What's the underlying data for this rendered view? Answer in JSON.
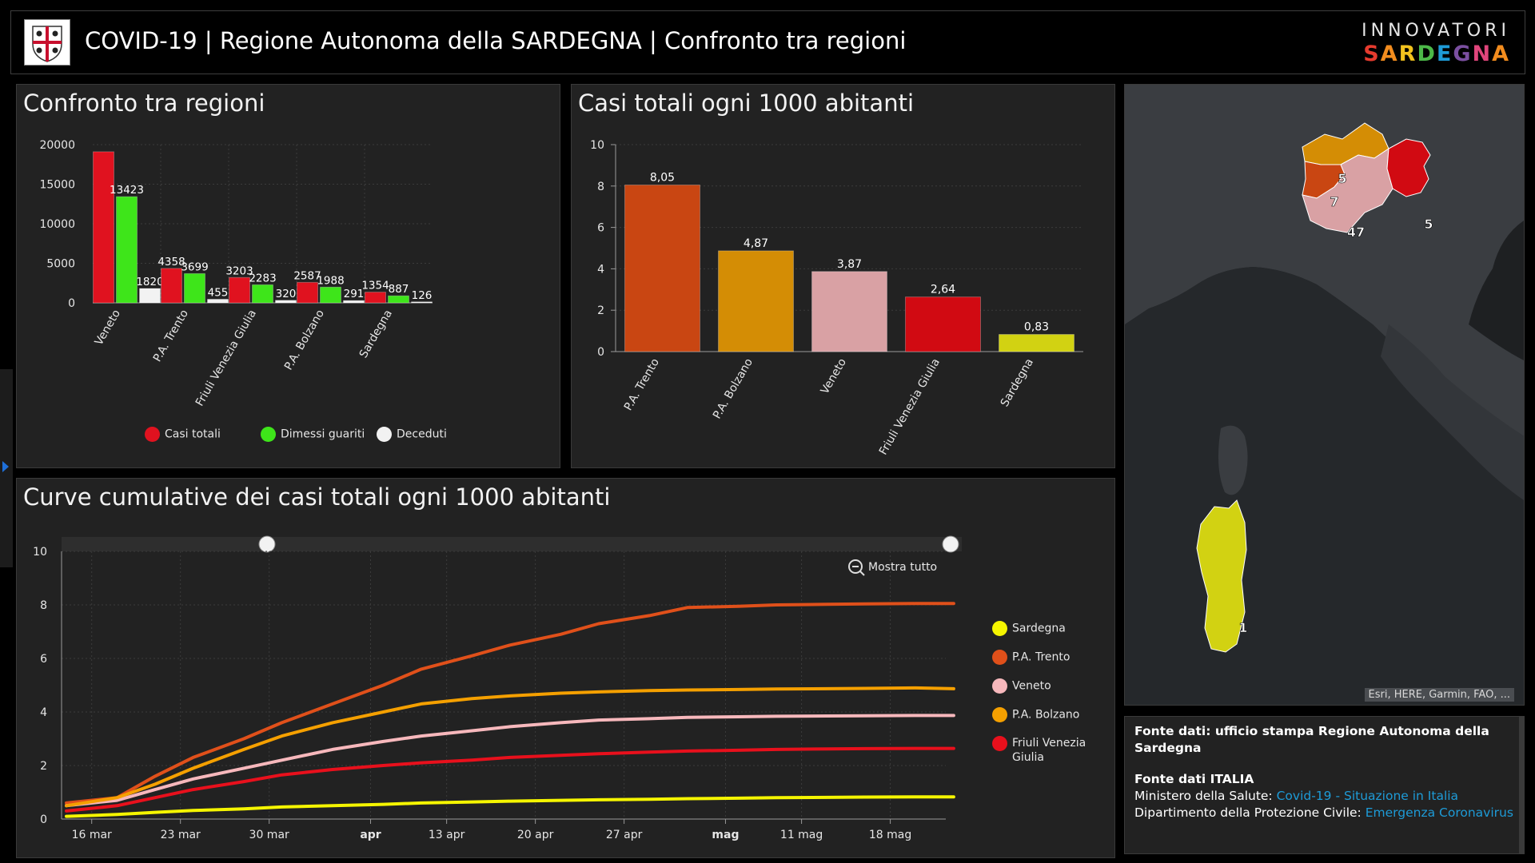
{
  "header": {
    "title": "COVID-19 | Regione Autonoma della SARDEGNA | Confronto tra regioni",
    "brand_top": "INNOVATORI",
    "brand_bottom_letters": [
      "S",
      "A",
      "R",
      "D",
      "E",
      "G",
      "N",
      "A"
    ],
    "brand_colors": [
      "#e63b2e",
      "#f28c1e",
      "#f2c21e",
      "#4cb848",
      "#1e9bd7",
      "#7b4fa0",
      "#e0457b",
      "#f28c1e"
    ]
  },
  "panel1": {
    "title": "Confronto tra regioni",
    "legend": [
      {
        "label": "Casi totali",
        "color": "#e0121f"
      },
      {
        "label": "Dimessi guariti",
        "color": "#3ee51a"
      },
      {
        "label": "Deceduti",
        "color": "#f2f2f2"
      }
    ]
  },
  "panel2": {
    "title": "Casi totali ogni 1000 abitanti"
  },
  "panel3": {
    "title": "Curve cumulative dei casi totali ogni 1000 abitanti",
    "zoom_label": "Mostra tutto",
    "legend": [
      {
        "label": "Sardegna",
        "color": "#f5f500"
      },
      {
        "label": "P.A. Trento",
        "color": "#e0501a"
      },
      {
        "label": "Veneto",
        "color": "#f7b8bc"
      },
      {
        "label": "P.A. Bolzano",
        "color": "#f5a000"
      },
      {
        "label": "Friuli Venezia Giulia",
        "color": "#e8101c"
      }
    ]
  },
  "map": {
    "attribution": "Esri, HERE, Garmin, FAO, ...",
    "labels": [
      "5",
      "7",
      "47",
      "5",
      "1"
    ]
  },
  "info": {
    "line1_bold": "Fonte dati: ufficio stampa Regione Autonoma della Sardegna",
    "line2_bold": "Fonte dati ITALIA",
    "line3_prefix": "Ministero della Salute: ",
    "line3_link": "Covid-19 - Situazione in Italia",
    "line4_prefix": "Dipartimento della Protezione Civile: ",
    "line4_link": "Emergenza Coronavirus"
  },
  "chart_data": [
    {
      "type": "bar",
      "categories": [
        "Veneto",
        "P.A. Trento",
        "Friuli Venezia Giulia",
        "P.A. Bolzano",
        "Sardegna"
      ],
      "series": [
        {
          "name": "Casi totali",
          "values": [
            19100,
            4358,
            3203,
            2587,
            1354
          ]
        },
        {
          "name": "Dimessi guariti",
          "values": [
            13423,
            3699,
            2283,
            1988,
            887
          ]
        },
        {
          "name": "Deceduti",
          "values": [
            1820,
            455,
            320,
            291,
            126
          ]
        }
      ],
      "data_labels": [
        [
          "",
          "4358",
          "3203",
          "2587",
          "1354"
        ],
        [
          "13423",
          "3699",
          "2283",
          "1988",
          "887"
        ],
        [
          "1820",
          "455",
          "320",
          "291",
          "126"
        ]
      ],
      "y_ticks": [
        "0",
        "5000",
        "10000",
        "15000",
        "20000"
      ],
      "ylim": [
        0,
        20000
      ],
      "grid": true,
      "legend_position": "bottom"
    },
    {
      "type": "bar",
      "categories": [
        "P.A. Trento",
        "P.A. Bolzano",
        "Veneto",
        "Friuli Venezia Giulia",
        "Sardegna"
      ],
      "values": [
        8.05,
        4.87,
        3.87,
        2.64,
        0.83
      ],
      "value_labels": [
        "8,05",
        "4,87",
        "3,87",
        "2,64",
        "0,83"
      ],
      "colors": [
        "#c94612",
        "#d48d05",
        "#d9a1a4",
        "#d10a12",
        "#d2d212"
      ],
      "y_ticks": [
        "0",
        "2",
        "4",
        "6",
        "8",
        "10"
      ],
      "ylim": [
        0,
        10
      ],
      "grid": true
    },
    {
      "type": "line",
      "x_ticks": [
        "16 mar",
        "23 mar",
        "30 mar",
        "apr",
        "13 apr",
        "20 apr",
        "27 apr",
        "mag",
        "11 mag",
        "18 mag"
      ],
      "x_ticks_bold": [
        "apr",
        "mag"
      ],
      "x_index": [
        0,
        4,
        7,
        10,
        14,
        17,
        21,
        25,
        28,
        32,
        35,
        39,
        42,
        46,
        49,
        53,
        56,
        60,
        63,
        67,
        70
      ],
      "x_tick_index": [
        2,
        9,
        16,
        24,
        30,
        37,
        44,
        52,
        58,
        65
      ],
      "x_range": [
        0,
        69
      ],
      "y_ticks": [
        "0",
        "2",
        "4",
        "6",
        "8",
        "10"
      ],
      "ylim": [
        0,
        10
      ],
      "grid": true,
      "legend_position": "right",
      "series": [
        {
          "name": "Sardegna",
          "color": "#f5f500",
          "values": [
            0.1,
            0.17,
            0.25,
            0.32,
            0.38,
            0.45,
            0.5,
            0.55,
            0.6,
            0.64,
            0.67,
            0.7,
            0.72,
            0.74,
            0.76,
            0.78,
            0.8,
            0.81,
            0.82,
            0.83,
            0.83
          ]
        },
        {
          "name": "P.A. Trento",
          "color": "#e0501a",
          "values": [
            0.6,
            0.8,
            1.6,
            2.3,
            3.0,
            3.6,
            4.3,
            5.0,
            5.6,
            6.1,
            6.5,
            6.9,
            7.3,
            7.6,
            7.9,
            7.95,
            8.0,
            8.02,
            8.04,
            8.05,
            8.05
          ]
        },
        {
          "name": "Veneto",
          "color": "#f7b8bc",
          "values": [
            0.5,
            0.7,
            1.1,
            1.5,
            1.9,
            2.2,
            2.6,
            2.9,
            3.1,
            3.3,
            3.45,
            3.6,
            3.7,
            3.75,
            3.8,
            3.82,
            3.84,
            3.85,
            3.86,
            3.87,
            3.87
          ]
        },
        {
          "name": "P.A. Bolzano",
          "color": "#f5a000",
          "values": [
            0.5,
            0.8,
            1.3,
            1.9,
            2.6,
            3.1,
            3.6,
            4.0,
            4.3,
            4.5,
            4.6,
            4.7,
            4.75,
            4.8,
            4.82,
            4.84,
            4.86,
            4.87,
            4.88,
            4.9,
            4.87
          ]
        },
        {
          "name": "Friuli Venezia Giulia",
          "color": "#e8101c",
          "values": [
            0.3,
            0.5,
            0.8,
            1.1,
            1.4,
            1.65,
            1.85,
            2.0,
            2.1,
            2.2,
            2.3,
            2.38,
            2.44,
            2.5,
            2.54,
            2.57,
            2.6,
            2.62,
            2.63,
            2.64,
            2.64
          ]
        }
      ]
    }
  ]
}
